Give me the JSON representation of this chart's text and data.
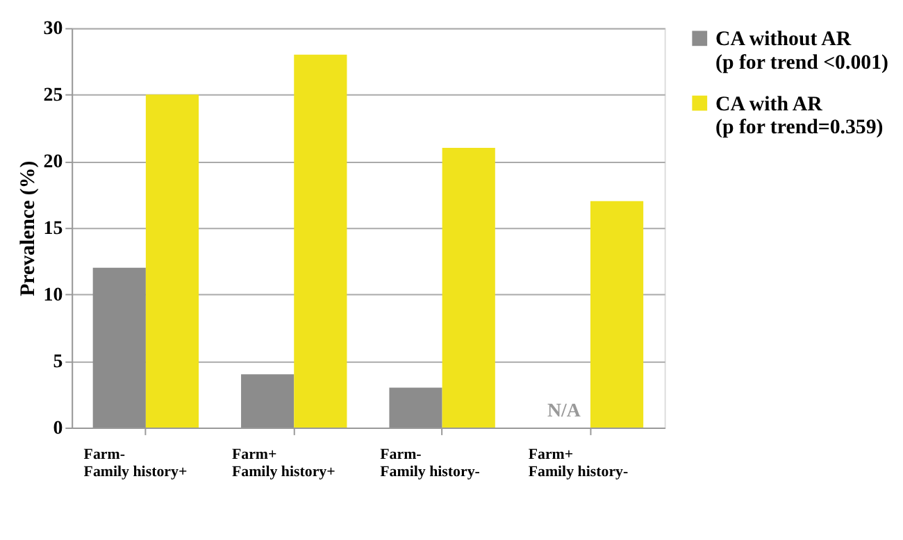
{
  "chart_data": {
    "type": "bar",
    "ylabel": "Prevalence (%)",
    "categories": [
      "Farm-\nFamily history+",
      "Farm+\nFamily history+",
      "Farm-\nFamily history-",
      "Farm+\nFamily history-"
    ],
    "series": [
      {
        "name": "CA without AR\n(p for trend <0.001)",
        "color": "#8c8c8c",
        "values": [
          12,
          4,
          3,
          null
        ]
      },
      {
        "name": "CA with AR\n(p for trend=0.359)",
        "color": "#f0e31c",
        "values": [
          25,
          28,
          21,
          17
        ]
      }
    ],
    "annotations": [
      "N/A"
    ],
    "ylim": [
      0,
      30
    ],
    "yticks": [
      0,
      5,
      10,
      15,
      20,
      25,
      30
    ],
    "grid": "y",
    "legend": "right"
  }
}
